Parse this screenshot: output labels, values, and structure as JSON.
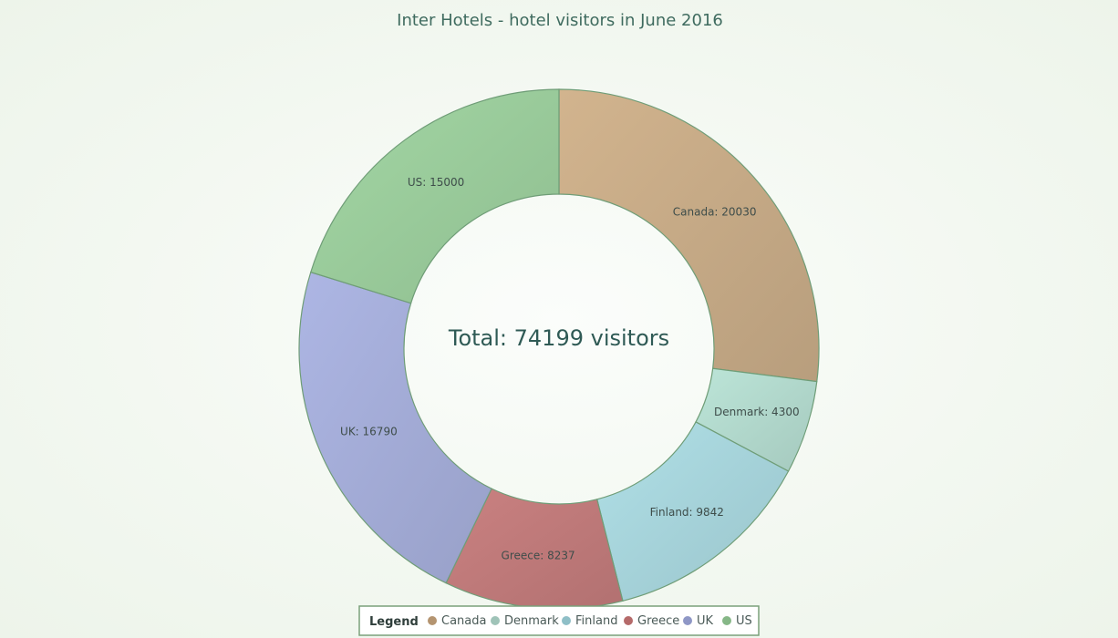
{
  "chart_data": {
    "type": "pie",
    "variant": "donut",
    "title": "Inter Hotels - hotel visitors in June 2016",
    "center_label": "Total: 74199 visitors",
    "categories": [
      "Canada",
      "Denmark",
      "Finland",
      "Greece",
      "UK",
      "US"
    ],
    "values": [
      20030,
      4300,
      9842,
      8237,
      16790,
      15000
    ],
    "slice_labels": [
      "Canada: 20030",
      "Denmark: 4300",
      "Finland: 9842",
      "Greece: 8237",
      "UK: 16790",
      "US: 15000"
    ],
    "colors": [
      "#c6aa86",
      "#b1d8cc",
      "#a6d3da",
      "#bf7a7a",
      "#a3acd7",
      "#9acb9b"
    ],
    "legend": {
      "title": "Legend",
      "placement": "bottom-center",
      "items": [
        "Canada",
        "Denmark",
        "Finland",
        "Greece",
        "UK",
        "US"
      ],
      "marker_colors": [
        "#b49470",
        "#9fc3b8",
        "#8fbfc7",
        "#b56a6a",
        "#8f97c6",
        "#86b787"
      ]
    },
    "start_angle_deg": 0,
    "direction": "clockwise"
  }
}
